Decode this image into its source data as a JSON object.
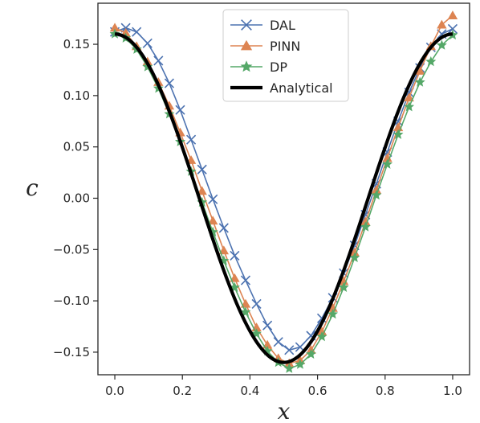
{
  "chart_data": {
    "type": "line",
    "title": "",
    "xlabel": "x",
    "ylabel": "c",
    "xlim": [
      -0.05,
      1.05
    ],
    "ylim": [
      -0.172,
      0.19
    ],
    "x_ticks": [
      0.0,
      0.2,
      0.4,
      0.6,
      0.8,
      1.0
    ],
    "x_tick_labels": [
      "0.0",
      "0.2",
      "0.4",
      "0.6",
      "0.8",
      "1.0"
    ],
    "y_ticks": [
      0.15,
      0.1,
      0.05,
      0.0,
      -0.05,
      -0.1,
      -0.15
    ],
    "y_tick_labels": [
      "0.15",
      "0.10",
      "0.05",
      "0.00",
      "−0.05",
      "−0.10",
      "−0.15"
    ],
    "grid": false,
    "legend_position": "top-center",
    "x": [
      0.0,
      0.0323,
      0.0645,
      0.0968,
      0.129,
      0.1613,
      0.1935,
      0.2258,
      0.2581,
      0.2903,
      0.3226,
      0.3548,
      0.3871,
      0.4194,
      0.4516,
      0.4839,
      0.5161,
      0.5484,
      0.5806,
      0.6129,
      0.6452,
      0.6774,
      0.7097,
      0.7419,
      0.7742,
      0.8065,
      0.8387,
      0.871,
      0.9032,
      0.9355,
      0.9677,
      1.0
    ],
    "series": [
      {
        "name": "DAL",
        "color": "#4c72b0",
        "marker": "x",
        "values": [
          0.162,
          0.166,
          0.162,
          0.151,
          0.134,
          0.112,
          0.086,
          0.057,
          0.028,
          -0.001,
          -0.029,
          -0.056,
          -0.08,
          -0.103,
          -0.124,
          -0.14,
          -0.148,
          -0.145,
          -0.134,
          -0.117,
          -0.097,
          -0.073,
          -0.046,
          -0.016,
          0.014,
          0.045,
          0.075,
          0.103,
          0.127,
          0.147,
          0.16,
          0.165
        ]
      },
      {
        "name": "PINN",
        "color": "#dd8452",
        "marker": "triangle",
        "values": [
          0.166,
          0.161,
          0.148,
          0.133,
          0.113,
          0.09,
          0.064,
          0.037,
          0.007,
          -0.022,
          -0.051,
          -0.078,
          -0.103,
          -0.126,
          -0.143,
          -0.156,
          -0.161,
          -0.158,
          -0.148,
          -0.13,
          -0.107,
          -0.081,
          -0.053,
          -0.023,
          0.008,
          0.039,
          0.069,
          0.098,
          0.124,
          0.148,
          0.169,
          0.178
        ]
      },
      {
        "name": "DP",
        "color": "#55a868",
        "marker": "star",
        "values": [
          0.16,
          0.156,
          0.145,
          0.128,
          0.107,
          0.082,
          0.055,
          0.026,
          -0.004,
          -0.033,
          -0.061,
          -0.087,
          -0.111,
          -0.132,
          -0.149,
          -0.16,
          -0.166,
          -0.162,
          -0.152,
          -0.135,
          -0.113,
          -0.087,
          -0.058,
          -0.028,
          0.003,
          0.033,
          0.062,
          0.089,
          0.113,
          0.133,
          0.149,
          0.159
        ]
      },
      {
        "name": "Analytical",
        "color": "#000000",
        "marker": "none",
        "function": "0.16*cos(2*pi*x)"
      }
    ]
  }
}
